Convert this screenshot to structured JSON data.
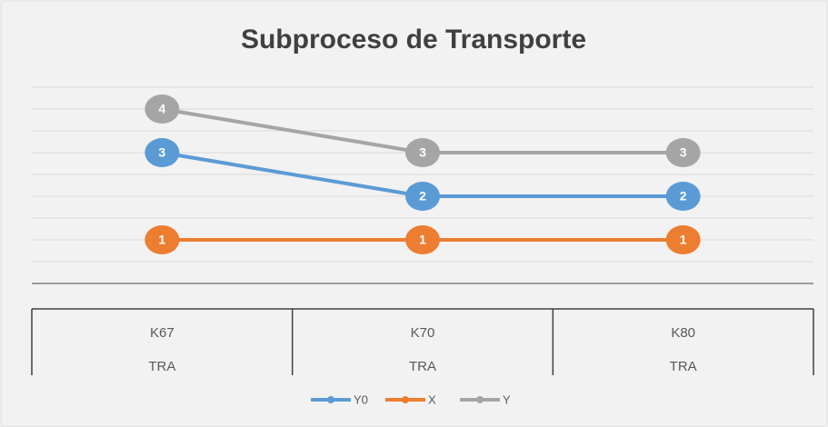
{
  "chart_data": {
    "type": "line",
    "title": "Subproceso de Transporte",
    "categories": [
      "K67",
      "K70",
      "K80"
    ],
    "category_groups": [
      "TRA",
      "TRA",
      "TRA"
    ],
    "series": [
      {
        "name": "Y0",
        "color": "#5b9bd5",
        "values": [
          3,
          2,
          2
        ]
      },
      {
        "name": "X",
        "color": "#ed7d31",
        "values": [
          1,
          1,
          1
        ]
      },
      {
        "name": "Y",
        "color": "#a5a5a5",
        "values": [
          4,
          3,
          3
        ]
      }
    ],
    "ylim": [
      0,
      4.5
    ],
    "yticks": [
      0,
      0.5,
      1,
      1.5,
      2,
      2.5,
      3,
      3.5,
      4,
      4.5
    ],
    "grid": true,
    "legend": "bottom"
  }
}
